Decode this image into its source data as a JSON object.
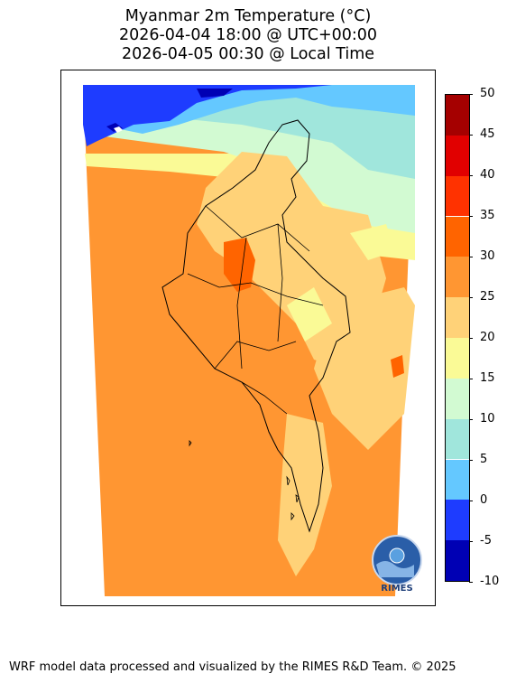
{
  "title": {
    "line1": "Myanmar 2m Temperature (°C)",
    "line2": "2026-04-04 18:00 @ UTC+00:00",
    "line3": "2026-04-05 00:30 @ Local Time"
  },
  "colorbar": {
    "ticks": [
      "50",
      "45",
      "40",
      "35",
      "30",
      "25",
      "20",
      "15",
      "10",
      "5",
      "0",
      "-5",
      "-10"
    ],
    "levels": [
      {
        "from": -10,
        "to": -5,
        "color": "#0000b4"
      },
      {
        "from": -5,
        "to": 0,
        "color": "#1e3cff"
      },
      {
        "from": 0,
        "to": 5,
        "color": "#64c8ff"
      },
      {
        "from": 5,
        "to": 10,
        "color": "#a0e6dc"
      },
      {
        "from": 10,
        "to": 15,
        "color": "#d2fad2"
      },
      {
        "from": 15,
        "to": 20,
        "color": "#fafa96"
      },
      {
        "from": 20,
        "to": 25,
        "color": "#ffd278"
      },
      {
        "from": 25,
        "to": 30,
        "color": "#ff9632"
      },
      {
        "from": 30,
        "to": 35,
        "color": "#ff6400"
      },
      {
        "from": 35,
        "to": 40,
        "color": "#ff3200"
      },
      {
        "from": 40,
        "to": 45,
        "color": "#e10000"
      },
      {
        "from": 45,
        "to": 50,
        "color": "#a50000"
      }
    ]
  },
  "map": {
    "region": "Myanmar",
    "variable": "2m Temperature",
    "dominant_color": "#ff9632",
    "logo_text": "RIMES"
  },
  "footer": {
    "text": "WRF model data processed and visualized by the RIMES R&D Team. © 2025"
  }
}
